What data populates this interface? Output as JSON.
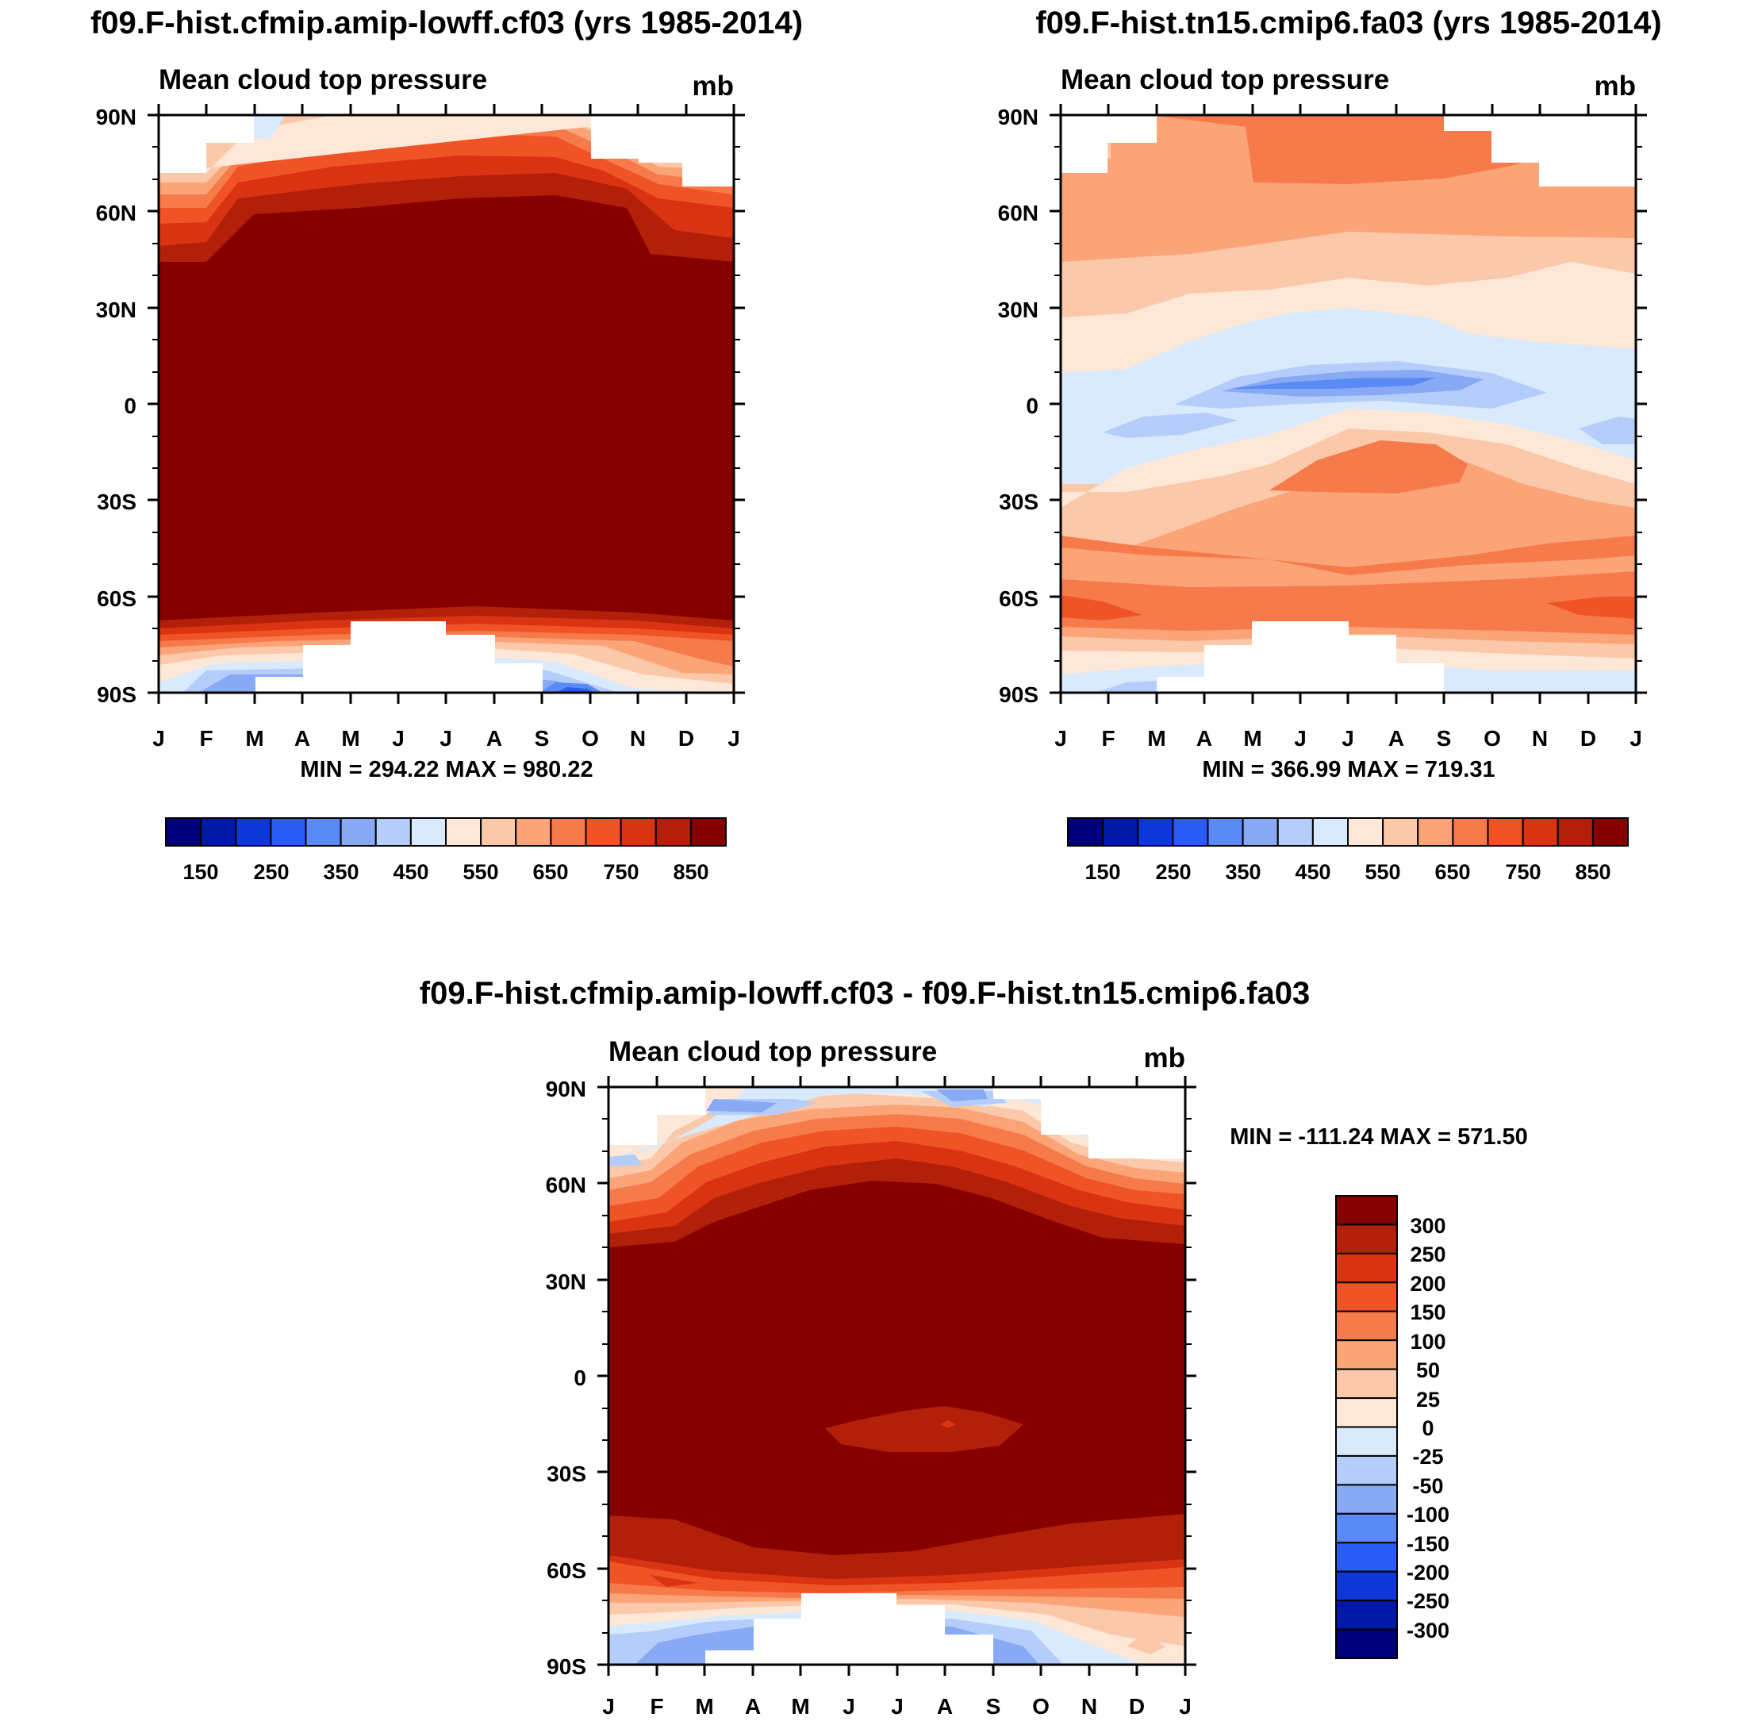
{
  "chart_data": [
    {
      "type": "heatmap",
      "id": "panel-a",
      "title": "f09.F-hist.cfmip.amip-lowff.cf03 (yrs 1985-2014)",
      "left_string": "Mean cloud top pressure",
      "right_string": "mb",
      "x_ticks": [
        "J",
        "F",
        "M",
        "A",
        "M",
        "J",
        "J",
        "A",
        "S",
        "O",
        "N",
        "D",
        "J"
      ],
      "y_ticks": [
        "90N",
        "60N",
        "30N",
        "0",
        "30S",
        "60S",
        "90S"
      ],
      "ylim": [
        -90,
        90
      ],
      "stats": "MIN = 294.22 MAX = 980.22",
      "colorbar": {
        "orientation": "horizontal",
        "labels": [
          "150",
          "250",
          "350",
          "450",
          "550",
          "650",
          "750",
          "850"
        ],
        "colors": [
          "#00007a",
          "#0019a6",
          "#0d37d9",
          "#2a5cf5",
          "#5a8af5",
          "#88aaf5",
          "#b5cdfa",
          "#d9eafc",
          "#fde8d8",
          "#fcc8aa",
          "#fba477",
          "#f77a4b",
          "#f05426",
          "#d93312",
          "#b3200a",
          "#870000"
        ]
      }
    },
    {
      "type": "heatmap",
      "id": "panel-b",
      "title": "f09.F-hist.tn15.cmip6.fa03 (yrs 1985-2014)",
      "left_string": "Mean cloud top pressure",
      "right_string": "mb",
      "x_ticks": [
        "J",
        "F",
        "M",
        "A",
        "M",
        "J",
        "J",
        "A",
        "S",
        "O",
        "N",
        "D",
        "J"
      ],
      "y_ticks": [
        "90N",
        "60N",
        "30N",
        "0",
        "30S",
        "60S",
        "90S"
      ],
      "ylim": [
        -90,
        90
      ],
      "stats": "MIN = 366.99 MAX = 719.31",
      "colorbar": {
        "orientation": "horizontal",
        "labels": [
          "150",
          "250",
          "350",
          "450",
          "550",
          "650",
          "750",
          "850"
        ],
        "colors": [
          "#00007a",
          "#0019a6",
          "#0d37d9",
          "#2a5cf5",
          "#5a8af5",
          "#88aaf5",
          "#b5cdfa",
          "#d9eafc",
          "#fde8d8",
          "#fcc8aa",
          "#fba477",
          "#f77a4b",
          "#f05426",
          "#d93312",
          "#b3200a",
          "#870000"
        ]
      }
    },
    {
      "type": "heatmap",
      "id": "panel-diff",
      "title": "f09.F-hist.cfmip.amip-lowff.cf03 - f09.F-hist.tn15.cmip6.fa03",
      "left_string": "Mean cloud top pressure",
      "right_string": "mb",
      "x_ticks": [
        "J",
        "F",
        "M",
        "A",
        "M",
        "J",
        "J",
        "A",
        "S",
        "O",
        "N",
        "D",
        "J"
      ],
      "y_ticks": [
        "90N",
        "60N",
        "30N",
        "0",
        "30S",
        "60S",
        "90S"
      ],
      "ylim": [
        -90,
        90
      ],
      "stats": "MIN = -111.24 MAX = 571.50",
      "colorbar": {
        "orientation": "vertical",
        "labels": [
          "300",
          "250",
          "200",
          "150",
          "100",
          "50",
          "25",
          "0",
          "-25",
          "-50",
          "-100",
          "-150",
          "-200",
          "-250",
          "-300"
        ],
        "colors": [
          "#870000",
          "#b3200a",
          "#d93312",
          "#f05426",
          "#f77a4b",
          "#fba477",
          "#fcc8aa",
          "#fde8d8",
          "#d9eafc",
          "#b5cdfa",
          "#88aaf5",
          "#5a8af5",
          "#2a5cf5",
          "#0d37d9",
          "#0019a6",
          "#00007a"
        ]
      }
    }
  ]
}
